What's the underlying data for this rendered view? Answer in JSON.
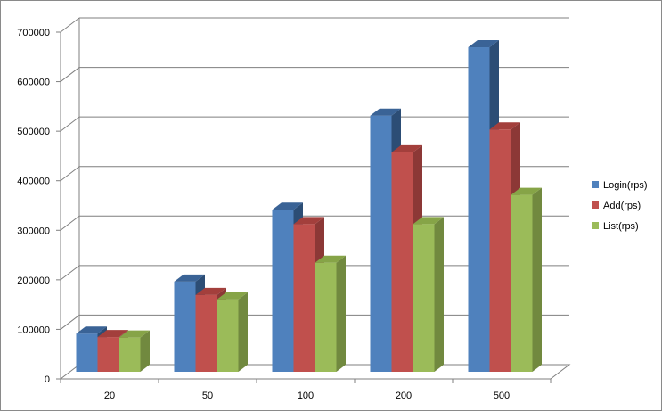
{
  "chart_data": {
    "type": "bar",
    "categories": [
      "20",
      "50",
      "100",
      "200",
      "500"
    ],
    "series": [
      {
        "name": "Login(rps)",
        "values": [
          77000,
          182000,
          327000,
          517000,
          655000
        ],
        "color": "#4f81bd",
        "side": "#2c4d75",
        "top": "#3a6396"
      },
      {
        "name": "Add(rps)",
        "values": [
          70000,
          155000,
          298000,
          443000,
          489000
        ],
        "color": "#c0504d",
        "side": "#8c3836",
        "top": "#a33f3c"
      },
      {
        "name": "List(rps)",
        "values": [
          69000,
          146000,
          220000,
          298000,
          357000
        ],
        "color": "#9bbb59",
        "side": "#71893f",
        "top": "#86a447"
      }
    ],
    "yticks": [
      "0",
      "100000",
      "200000",
      "300000",
      "400000",
      "500000",
      "600000",
      "700000"
    ],
    "ylim": [
      0,
      700000
    ],
    "grid": true,
    "legend_position": "right",
    "three_d": true
  }
}
